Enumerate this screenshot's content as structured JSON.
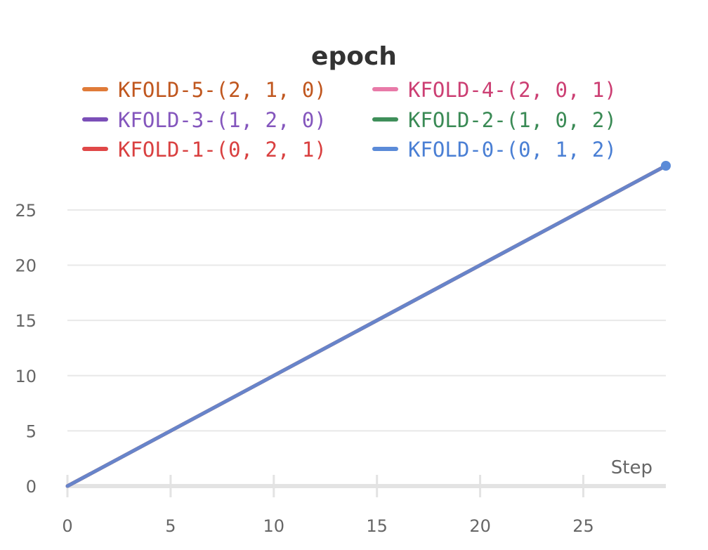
{
  "chart_data": {
    "type": "line",
    "title": "epoch",
    "xlabel": "Step",
    "ylabel": "",
    "xlim": [
      0,
      29
    ],
    "ylim": [
      0,
      29
    ],
    "x_ticks": [
      0,
      5,
      10,
      15,
      20,
      25
    ],
    "y_ticks": [
      0,
      5,
      10,
      15,
      20,
      25
    ],
    "grid": true,
    "legend_position": "top",
    "series": [
      {
        "name": "KFOLD-5-(2, 1, 0)",
        "color": "#e07b39",
        "text_color": "#c0571f",
        "x": [
          0,
          29
        ],
        "y": [
          0,
          29
        ]
      },
      {
        "name": "KFOLD-4-(2, 0, 1)",
        "color": "#e87aa8",
        "text_color": "#cc3f73",
        "x": [
          0,
          29
        ],
        "y": [
          0,
          29
        ]
      },
      {
        "name": "KFOLD-3-(1, 2, 0)",
        "color": "#7b4fb8",
        "text_color": "#8456bd",
        "x": [
          0,
          29
        ],
        "y": [
          0,
          29
        ]
      },
      {
        "name": "KFOLD-2-(1, 0, 2)",
        "color": "#3f8f5a",
        "text_color": "#3a8a55",
        "x": [
          0,
          29
        ],
        "y": [
          0,
          29
        ]
      },
      {
        "name": "KFOLD-1-(0, 2, 1)",
        "color": "#e04848",
        "text_color": "#d94040",
        "x": [
          0,
          29
        ],
        "y": [
          0,
          29
        ]
      },
      {
        "name": "KFOLD-0-(0, 1, 2)",
        "color": "#5b8bd8",
        "text_color": "#4a7fd4",
        "x": [
          0,
          29
        ],
        "y": [
          0,
          29
        ]
      }
    ]
  }
}
